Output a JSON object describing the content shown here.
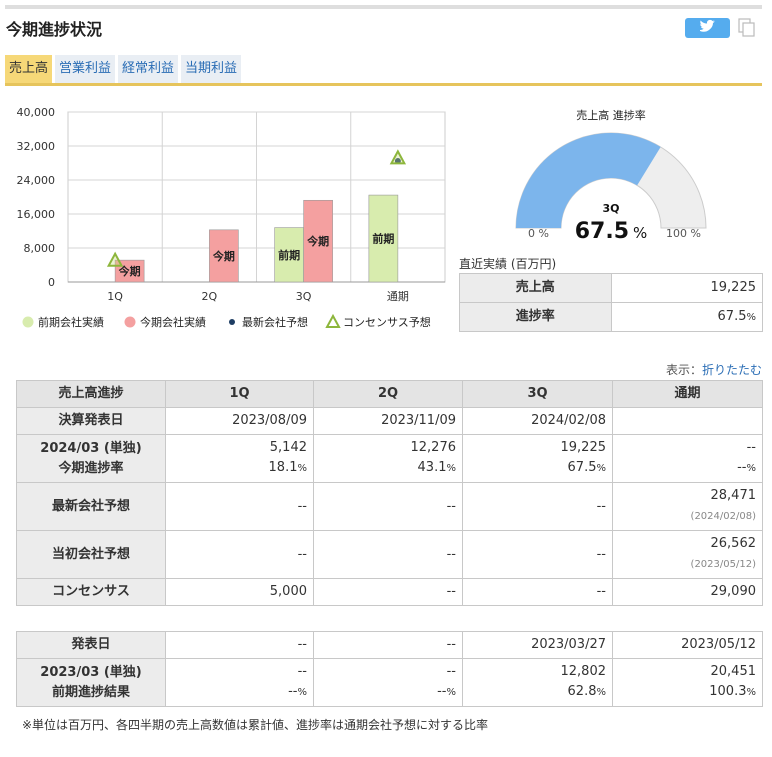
{
  "header": {
    "title": "今期進捗状況"
  },
  "tabs": [
    {
      "label": "売上高",
      "active": true
    },
    {
      "label": "営業利益",
      "active": false
    },
    {
      "label": "経常利益",
      "active": false
    },
    {
      "label": "当期利益",
      "active": false
    }
  ],
  "chart_data": {
    "type": "bar",
    "categories": [
      "1Q",
      "2Q",
      "3Q",
      "通期"
    ],
    "ylim": [
      0,
      40000
    ],
    "yticks": [
      0,
      {
        "value": 8000,
        "label": "8,000"
      },
      {
        "value": 16000,
        "label": "16,000"
      },
      {
        "value": 24000,
        "label": "24,000"
      },
      {
        "value": 32000,
        "label": "32,000"
      },
      {
        "value": 40000,
        "label": "40,000"
      }
    ],
    "grid": true,
    "series": [
      {
        "name": "前期会社実績",
        "color": "#d8ecae",
        "bar_label": "前期",
        "values": [
          null,
          null,
          12802,
          20451
        ]
      },
      {
        "name": "今期会社実績",
        "color": "#f4a0a0",
        "bar_label": "今期",
        "values": [
          5142,
          12276,
          19225,
          null
        ]
      },
      {
        "name": "最新会社予想",
        "color": "#1e3d63",
        "marker": "dot",
        "values": [
          null,
          null,
          null,
          28471
        ]
      },
      {
        "name": "コンセンサス予想",
        "color": "#8db63c",
        "marker": "triangle",
        "values": [
          5000,
          null,
          null,
          29090
        ]
      }
    ]
  },
  "gauge": {
    "title": "売上高 進捗率",
    "period": "3Q",
    "value": 67.5,
    "unit": "%",
    "color": "#7cb5ec",
    "min": {
      "value": 0,
      "label": "0 %"
    },
    "max": {
      "value": 100,
      "label": "100 %"
    }
  },
  "recent": {
    "caption": "直近実績 (百万円)",
    "rows": [
      [
        "売上高",
        "19,225"
      ],
      [
        "進捗率",
        {
          "text": "67.5",
          "unit": "%"
        }
      ]
    ]
  },
  "display": {
    "label": "表示：",
    "link": "折りたたむ"
  },
  "progress_table": {
    "header": [
      "売上高進捗",
      "1Q",
      "2Q",
      "3Q",
      "通期"
    ],
    "rows": [
      {
        "label": [
          "決算発表日"
        ],
        "cells": [
          [
            "2023/08/09"
          ],
          [
            "2023/11/09"
          ],
          [
            "2024/02/08"
          ],
          null
        ]
      },
      {
        "label": [
          "2024/03 (単独)",
          "今期進捗率"
        ],
        "cells": [
          [
            "5,142",
            {
              "text": "18.1",
              "unit": "%"
            }
          ],
          [
            "12,276",
            {
              "text": "43.1",
              "unit": "%"
            }
          ],
          [
            "19,225",
            {
              "text": "67.5",
              "unit": "%"
            }
          ],
          [
            "--",
            {
              "text": "--",
              "unit": "%"
            }
          ]
        ]
      },
      {
        "label": [
          "最新会社予想"
        ],
        "cells": [
          [
            "--"
          ],
          [
            "--"
          ],
          [
            "--"
          ],
          [
            "28,471",
            {
              "note": "(2024/02/08)"
            }
          ]
        ]
      },
      {
        "label": [
          "当初会社予想"
        ],
        "cells": [
          [
            "--"
          ],
          [
            "--"
          ],
          [
            "--"
          ],
          [
            "26,562",
            {
              "note": "(2023/05/12)"
            }
          ]
        ]
      },
      {
        "label": [
          "コンセンサス"
        ],
        "cells": [
          [
            "5,000"
          ],
          [
            "--"
          ],
          [
            "--"
          ],
          [
            "29,090"
          ]
        ]
      }
    ]
  },
  "previous_table": {
    "rows": [
      {
        "label": [
          "発表日"
        ],
        "cells": [
          [
            "--"
          ],
          [
            "--"
          ],
          [
            "2023/03/27"
          ],
          [
            "2023/05/12"
          ]
        ]
      },
      {
        "label": [
          "2023/03 (単独)",
          "前期進捗結果"
        ],
        "cells": [
          [
            "--",
            {
              "text": "--",
              "unit": "%"
            }
          ],
          [
            "--",
            {
              "text": "--",
              "unit": "%"
            }
          ],
          [
            "12,802",
            {
              "text": "62.8",
              "unit": "%"
            }
          ],
          [
            "20,451",
            {
              "text": "100.3",
              "unit": "%"
            }
          ]
        ]
      }
    ]
  },
  "footnote": "※単位は百万円、各四半期の売上高数値は累計値、進捗率は通期会社予想に対する比率"
}
